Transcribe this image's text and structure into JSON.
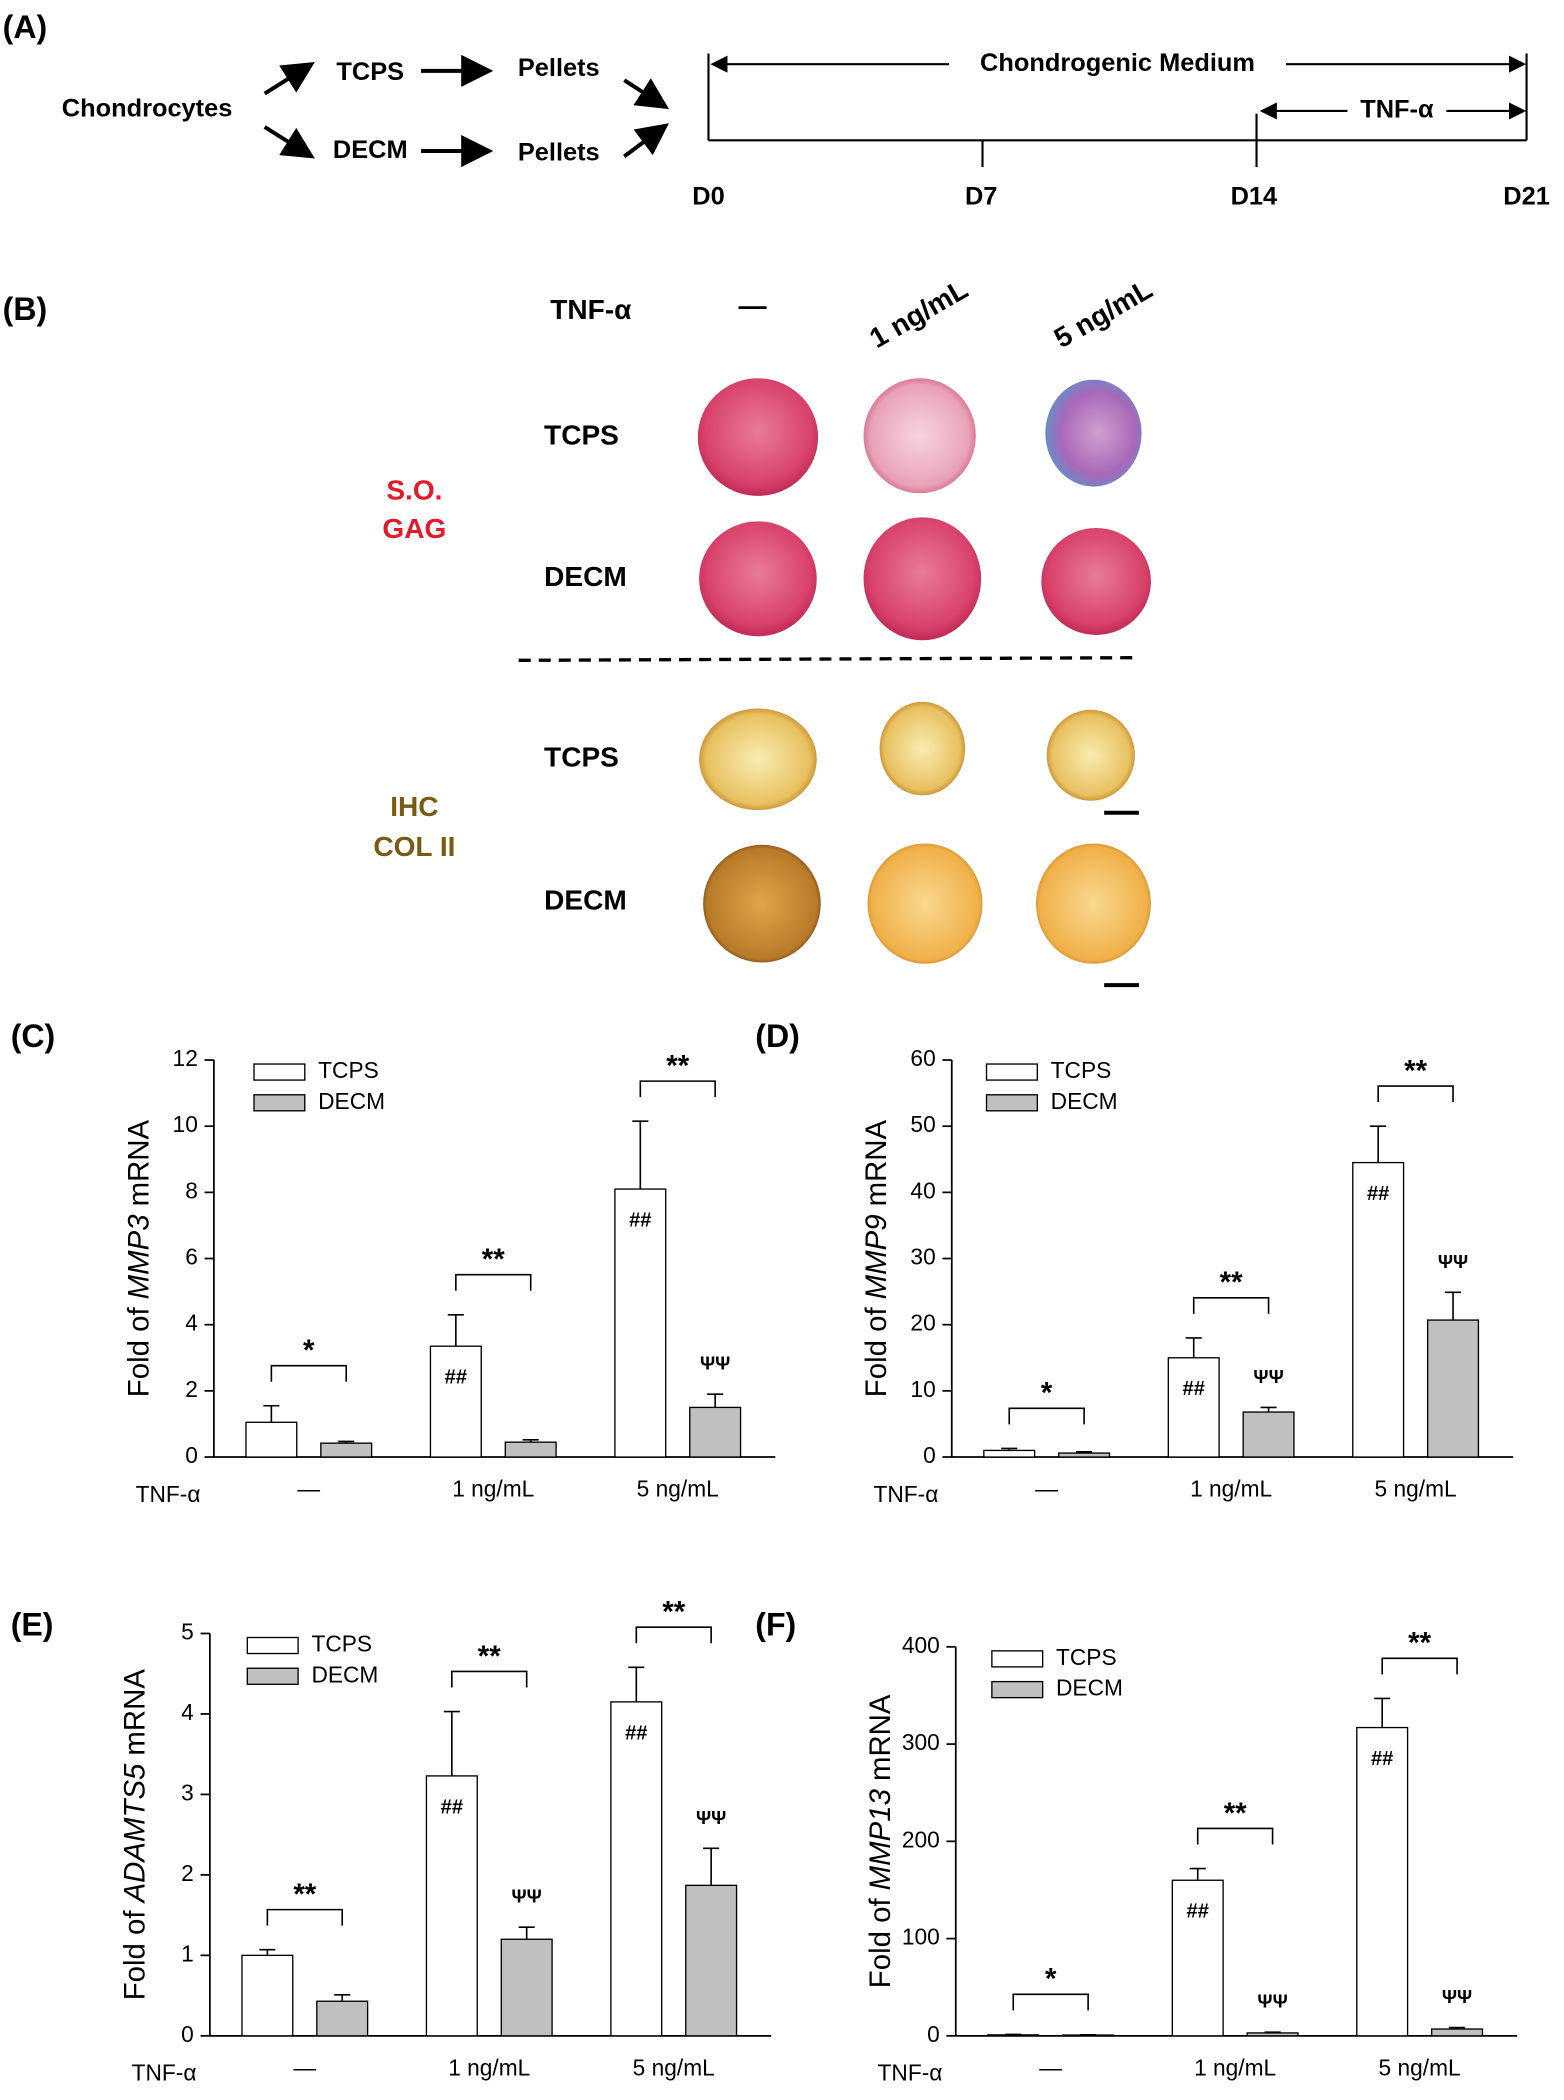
{
  "panel_a": {
    "label": "(A)",
    "source": "Chondrocytes",
    "arms": [
      {
        "substrate": "TCPS",
        "product": "Pellets"
      },
      {
        "substrate": "DECM",
        "product": "Pellets"
      }
    ],
    "medium": "Chondrogenic Medium",
    "treatment": "TNF-α",
    "days": [
      "D0",
      "D7",
      "D14",
      "D21"
    ]
  },
  "panel_b": {
    "label": "(B)",
    "factor": "TNF-α",
    "doses": [
      "—",
      "1 ng/mL",
      "5 ng/mL"
    ],
    "groups": [
      {
        "stain": [
          "S.O.",
          "GAG"
        ],
        "rows": [
          "TCPS",
          "DECM"
        ]
      },
      {
        "stain": [
          "IHC",
          "COL II"
        ],
        "rows": [
          "TCPS",
          "DECM"
        ]
      }
    ]
  },
  "chart_data": [
    {
      "type": "bar",
      "panel": "(C)",
      "y_label": {
        "prefix": "Fold of",
        "gene": "MMP3",
        "suffix": "mRNA"
      },
      "x_label": "TNF-α",
      "categories": [
        "—",
        "1 ng/mL",
        "5 ng/mL"
      ],
      "series": [
        {
          "name": "TCPS",
          "color": "#ffffff",
          "values": [
            1.05,
            3.35,
            8.1
          ],
          "errors": [
            0.5,
            0.95,
            2.05
          ],
          "marks": [
            null,
            "##",
            "##"
          ]
        },
        {
          "name": "DECM",
          "color": "#c0c0c0",
          "values": [
            0.42,
            0.45,
            1.5
          ],
          "errors": [
            0.05,
            0.07,
            0.4
          ],
          "marks": [
            null,
            null,
            "ΨΨ"
          ]
        }
      ],
      "significance": [
        "*",
        "**",
        "**"
      ],
      "ylim": [
        0,
        12
      ],
      "yticks": [
        0,
        2,
        4,
        6,
        8,
        10,
        12
      ]
    },
    {
      "type": "bar",
      "panel": "(D)",
      "y_label": {
        "prefix": "Fold of",
        "gene": "MMP9",
        "suffix": "mRNA"
      },
      "x_label": "TNF-α",
      "categories": [
        "—",
        "1 ng/mL",
        "5 ng/mL"
      ],
      "series": [
        {
          "name": "TCPS",
          "color": "#ffffff",
          "values": [
            1.0,
            15,
            44.5
          ],
          "errors": [
            0.3,
            3,
            5.5
          ],
          "marks": [
            null,
            "##",
            "##"
          ]
        },
        {
          "name": "DECM",
          "color": "#c0c0c0",
          "values": [
            0.6,
            6.8,
            20.7
          ],
          "errors": [
            0.2,
            0.7,
            4.2
          ],
          "marks": [
            null,
            "ΨΨ",
            "ΨΨ"
          ]
        }
      ],
      "significance": [
        "*",
        "**",
        "**"
      ],
      "ylim": [
        0,
        60
      ],
      "yticks": [
        0,
        10,
        20,
        30,
        40,
        50,
        60
      ]
    },
    {
      "type": "bar",
      "panel": "(E)",
      "y_label": {
        "prefix": "Fold of",
        "gene": "ADAMTS5",
        "suffix": "mRNA"
      },
      "x_label": "TNF-α",
      "categories": [
        "—",
        "1 ng/mL",
        "5 ng/mL"
      ],
      "series": [
        {
          "name": "TCPS",
          "color": "#ffffff",
          "values": [
            1.0,
            3.23,
            4.15
          ],
          "errors": [
            0.07,
            0.8,
            0.43
          ],
          "marks": [
            null,
            "##",
            "##"
          ]
        },
        {
          "name": "DECM",
          "color": "#c0c0c0",
          "values": [
            0.43,
            1.2,
            1.87
          ],
          "errors": [
            0.08,
            0.15,
            0.46
          ],
          "marks": [
            null,
            "ΨΨ",
            "ΨΨ"
          ]
        }
      ],
      "significance": [
        "**",
        "**",
        "**"
      ],
      "ylim": [
        0,
        5
      ],
      "yticks": [
        0,
        1,
        2,
        3,
        4,
        5
      ]
    },
    {
      "type": "bar",
      "panel": "(F)",
      "y_label": {
        "prefix": "Fold of",
        "gene": "MMP13",
        "suffix": "mRNA"
      },
      "x_label": "TNF-α",
      "categories": [
        "—",
        "1 ng/mL",
        "5 ng/mL"
      ],
      "series": [
        {
          "name": "TCPS",
          "color": "#ffffff",
          "values": [
            1,
            160,
            317
          ],
          "errors": [
            0.5,
            12,
            30
          ],
          "marks": [
            null,
            "##",
            "##"
          ]
        },
        {
          "name": "DECM",
          "color": "#c0c0c0",
          "values": [
            0.8,
            3,
            7
          ],
          "errors": [
            0.3,
            0.8,
            1.5
          ],
          "marks": [
            null,
            "ΨΨ",
            "ΨΨ"
          ]
        }
      ],
      "significance": [
        "*",
        "**",
        "**"
      ],
      "ylim": [
        0,
        400
      ],
      "yticks": [
        0,
        100,
        200,
        300,
        400
      ]
    }
  ]
}
